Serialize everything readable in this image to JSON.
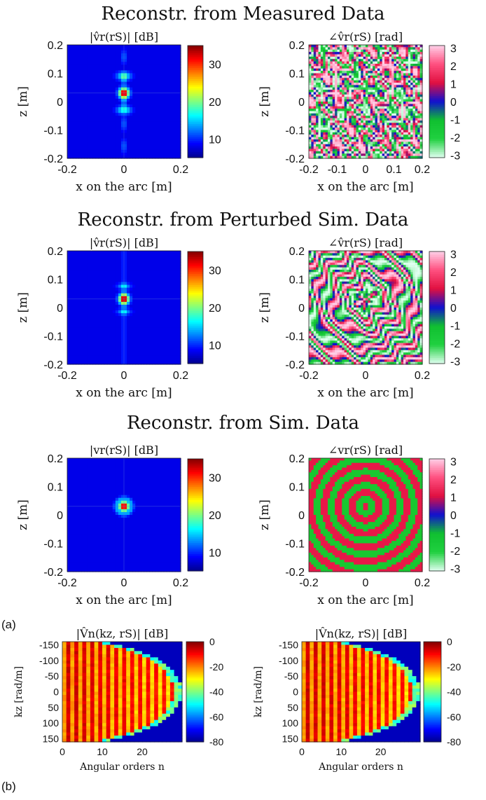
{
  "figure": {
    "panel_label_a": "(a)",
    "panel_label_b": "(b)"
  },
  "section_titles": [
    "Reconstr. from Measured Data",
    "Reconstr. from Perturbed Sim. Data",
    "Reconstr. from Sim. Data"
  ],
  "colors": {
    "jet": [
      "#00008f",
      "#0000ff",
      "#0080ff",
      "#00ffff",
      "#80ff80",
      "#ffff00",
      "#ff8000",
      "#ff0000",
      "#800000"
    ],
    "phase": [
      "#e0fff0",
      "#20d040",
      "#10c030",
      "#1010d0",
      "#e01040",
      "#ff5080",
      "#ffd0e8"
    ]
  },
  "chart_data": [
    {
      "type": "heatmap",
      "title": "|v̂r(rS)| [dB]",
      "xlabel": "x on the arc [m]",
      "ylabel": "z [m]",
      "xlim": [
        -0.2,
        0.2
      ],
      "ylim": [
        -0.2,
        0.2
      ],
      "xticks": [
        "-0.2",
        "0",
        "0.2"
      ],
      "yticks": [
        "0.2",
        "0.1",
        "0",
        "-0.1",
        "-0.2"
      ],
      "colorbar": {
        "ticks": [
          "30",
          "20",
          "10"
        ],
        "range": [
          5,
          35
        ]
      },
      "colormap": "jet",
      "peak": {
        "x": 0,
        "z": 0.03
      }
    },
    {
      "type": "heatmap",
      "title": "∠v̂r(rS) [rad]",
      "xlabel": "x on the arc [m]",
      "ylabel": "z [m]",
      "xlim": [
        -0.2,
        0.2
      ],
      "ylim": [
        -0.2,
        0.2
      ],
      "xticks": [
        "-0.2",
        "-0.1",
        "0",
        "0.1",
        "0.2"
      ],
      "yticks": [
        "0.2",
        "0.1",
        "0",
        "-0.1",
        "-0.2"
      ],
      "colorbar": {
        "ticks": [
          "3",
          "2",
          "1",
          "0",
          "-1",
          "-2",
          "-3"
        ],
        "range": [
          -3.14,
          3.14
        ]
      },
      "colormap": "phase"
    },
    {
      "type": "heatmap",
      "title": "|v̂r(rS)| [dB]",
      "xlabel": "x on the arc [m]",
      "ylabel": "z [m]",
      "xlim": [
        -0.2,
        0.2
      ],
      "ylim": [
        -0.2,
        0.2
      ],
      "xticks": [
        "-0.2",
        "0",
        "0.2"
      ],
      "yticks": [
        "0.2",
        "0.1",
        "0",
        "-0.1",
        "-0.2"
      ],
      "colorbar": {
        "ticks": [
          "30",
          "20",
          "10"
        ],
        "range": [
          5,
          35
        ]
      },
      "colormap": "jet",
      "peak": {
        "x": 0,
        "z": 0.03
      }
    },
    {
      "type": "heatmap",
      "title": "∠v̂r(rS) [rad]",
      "xlabel": "x on the arc [m]",
      "ylabel": "z [m]",
      "xlim": [
        -0.2,
        0.2
      ],
      "ylim": [
        -0.2,
        0.2
      ],
      "xticks": [
        "-0.2",
        "0",
        "0.2"
      ],
      "yticks": [
        "0.2",
        "0.1",
        "0",
        "-0.1",
        "-0.2"
      ],
      "colorbar": {
        "ticks": [
          "3",
          "2",
          "1",
          "0",
          "-1",
          "-2",
          "-3"
        ],
        "range": [
          -3.14,
          3.14
        ]
      },
      "colormap": "phase"
    },
    {
      "type": "heatmap",
      "title": "|vr(rS)| [dB]",
      "xlabel": "x on the arc [m]",
      "ylabel": "z [m]",
      "xlim": [
        -0.2,
        0.2
      ],
      "ylim": [
        -0.2,
        0.2
      ],
      "xticks": [
        "-0.2",
        "0",
        "0.2"
      ],
      "yticks": [
        "0.2",
        "0.1",
        "0",
        "-0.1",
        "-0.2"
      ],
      "colorbar": {
        "ticks": [
          "30",
          "20",
          "10"
        ],
        "range": [
          5,
          35
        ]
      },
      "colormap": "jet",
      "peak": {
        "x": 0,
        "z": 0.03
      }
    },
    {
      "type": "heatmap",
      "title": "∠vr(rS) [rad]",
      "xlabel": "x on the arc [m]",
      "ylabel": "z [m]",
      "xlim": [
        -0.2,
        0.2
      ],
      "ylim": [
        -0.2,
        0.2
      ],
      "xticks": [
        "-0.2",
        "0",
        "0.2"
      ],
      "yticks": [
        "0.2",
        "0.1",
        "0",
        "-0.1",
        "-0.2"
      ],
      "colorbar": {
        "ticks": [
          "3",
          "2",
          "1",
          "0",
          "-1",
          "-2",
          "-3"
        ],
        "range": [
          -3.14,
          3.14
        ]
      },
      "colormap": "phase"
    },
    {
      "type": "heatmap",
      "title": "|V̂n(kz, rS)| [dB]",
      "xlabel": "Angular orders n",
      "ylabel": "kz [rad/m]",
      "xlim": [
        0,
        30
      ],
      "ylim": [
        -160,
        160
      ],
      "xticks": [
        "0",
        "10",
        "20"
      ],
      "yticks": [
        "-150",
        "-100",
        "-50",
        "0",
        "50",
        "100",
        "150"
      ],
      "colorbar": {
        "ticks": [
          "0",
          "-20",
          "-40",
          "-60",
          "-80"
        ],
        "range": [
          -80,
          0
        ]
      },
      "colormap": "jet"
    },
    {
      "type": "heatmap",
      "title": "|V̂n(kz, rS)| [dB]",
      "xlabel": "Angular orders n",
      "ylabel": "kz [rad/m]",
      "xlim": [
        0,
        30
      ],
      "ylim": [
        -160,
        160
      ],
      "xticks": [
        "0",
        "10",
        "20"
      ],
      "yticks": [
        "-150",
        "-100",
        "-50",
        "0",
        "50",
        "100",
        "150"
      ],
      "colorbar": {
        "ticks": [
          "0",
          "-20",
          "-40",
          "-60",
          "-80"
        ],
        "range": [
          -80,
          0
        ]
      },
      "colormap": "jet"
    }
  ]
}
